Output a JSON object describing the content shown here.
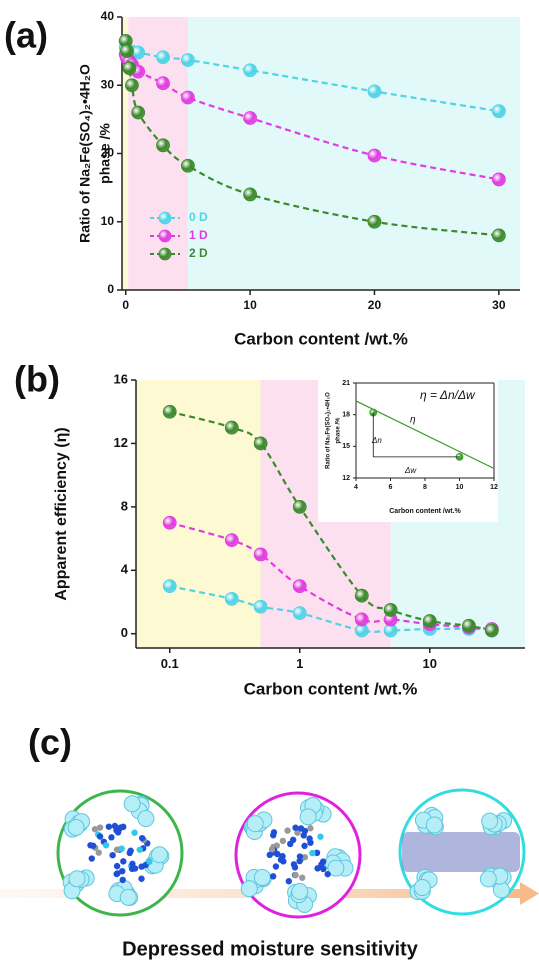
{
  "panel_labels": [
    "(a)",
    "(b)",
    "(c)"
  ],
  "caption": "Depressed moisture sensitivity",
  "chart_data": [
    {
      "type": "line",
      "xscale": "linear",
      "xlabel": "Carbon content /wt.%",
      "ylabel": [
        "Ratio of Na₂Fe(SO₄)₂•4H₂O",
        "phase /%"
      ],
      "xlim": [
        -0.3,
        31.7
      ],
      "xticks": [
        0,
        10,
        20,
        30
      ],
      "ylim": [
        0,
        40
      ],
      "yticks": [
        0,
        10,
        20,
        30,
        40
      ],
      "regions": [
        {
          "from": -0.3,
          "to": 0.2,
          "color": "#fdf9d2"
        },
        {
          "from": 0.2,
          "to": 5,
          "color": "#fde0ef"
        },
        {
          "from": 5,
          "to": 31.7,
          "color": "#e2f9fa"
        }
      ],
      "legend": "left",
      "x": [
        0,
        0.1,
        0.3,
        0.5,
        1,
        3,
        5,
        10,
        20,
        30
      ],
      "series": [
        {
          "name": "0 D",
          "color": "#4fd3e6",
          "values": [
            35.5,
            35.3,
            35.0,
            34.9,
            34.8,
            34.1,
            33.7,
            32.2,
            29.1,
            26.2
          ]
        },
        {
          "name": "1 D",
          "color": "#e03ce0",
          "values": [
            34.5,
            34.0,
            33.5,
            33.0,
            32.0,
            30.3,
            28.2,
            25.2,
            19.7,
            16.2
          ]
        },
        {
          "name": "2 D",
          "color": "#3b8a2c",
          "values": [
            36.5,
            35.0,
            32.5,
            30.0,
            26.0,
            21.2,
            18.2,
            14.0,
            10.0,
            8.0
          ]
        }
      ]
    },
    {
      "type": "line",
      "xscale": "log",
      "xlabel": "Carbon content /wt.%",
      "ylabel": [
        "Apparent efficiency (η)"
      ],
      "xlim": [
        0.055,
        54
      ],
      "xticks": [
        0.1,
        1,
        10
      ],
      "ylim": [
        -0.9,
        16
      ],
      "yticks": [
        0,
        4,
        8,
        12,
        16
      ],
      "regions": [
        {
          "from": 0.055,
          "to": 0.5,
          "color": "#fdf9d2"
        },
        {
          "from": 0.5,
          "to": 5,
          "color": "#fde0ef"
        },
        {
          "from": 5,
          "to": 54,
          "color": "#e2f9fa"
        }
      ],
      "x": [
        0.1,
        0.3,
        0.5,
        1,
        3,
        5,
        10,
        20,
        30
      ],
      "series": [
        {
          "color": "#4fd3e6",
          "values": [
            3.0,
            2.2,
            1.7,
            1.3,
            0.2,
            0.2,
            0.3,
            0.3,
            0.3
          ]
        },
        {
          "color": "#e03ce0",
          "values": [
            7.0,
            5.9,
            5.0,
            3.0,
            0.9,
            0.9,
            0.6,
            0.4,
            0.3
          ]
        },
        {
          "color": "#3b8a2c",
          "values": [
            14.0,
            13.0,
            12.0,
            8.0,
            2.4,
            1.5,
            0.8,
            0.5,
            0.2
          ]
        }
      ]
    },
    {
      "type": "line",
      "xscale": "linear",
      "xlabel": "Carbon content /wt.%",
      "ylabel": [
        "Ratio of Na₂Fe(SO₄)₂•4H₂O",
        "phase /%"
      ],
      "xlim": [
        4,
        12
      ],
      "xticks": [
        4,
        6,
        8,
        10,
        12
      ],
      "ylim": [
        12,
        21
      ],
      "yticks": [
        12,
        15,
        18,
        21
      ],
      "x": [
        5,
        10
      ],
      "series": [
        {
          "color": "#3b9a2c",
          "values": [
            18.2,
            14.0
          ]
        }
      ],
      "fit": {
        "x": [
          4,
          12
        ],
        "values": [
          19.3,
          12.9
        ]
      },
      "annotations": [
        "η = Δn/Δw",
        "η",
        "Δn",
        "Δw"
      ]
    }
  ]
}
